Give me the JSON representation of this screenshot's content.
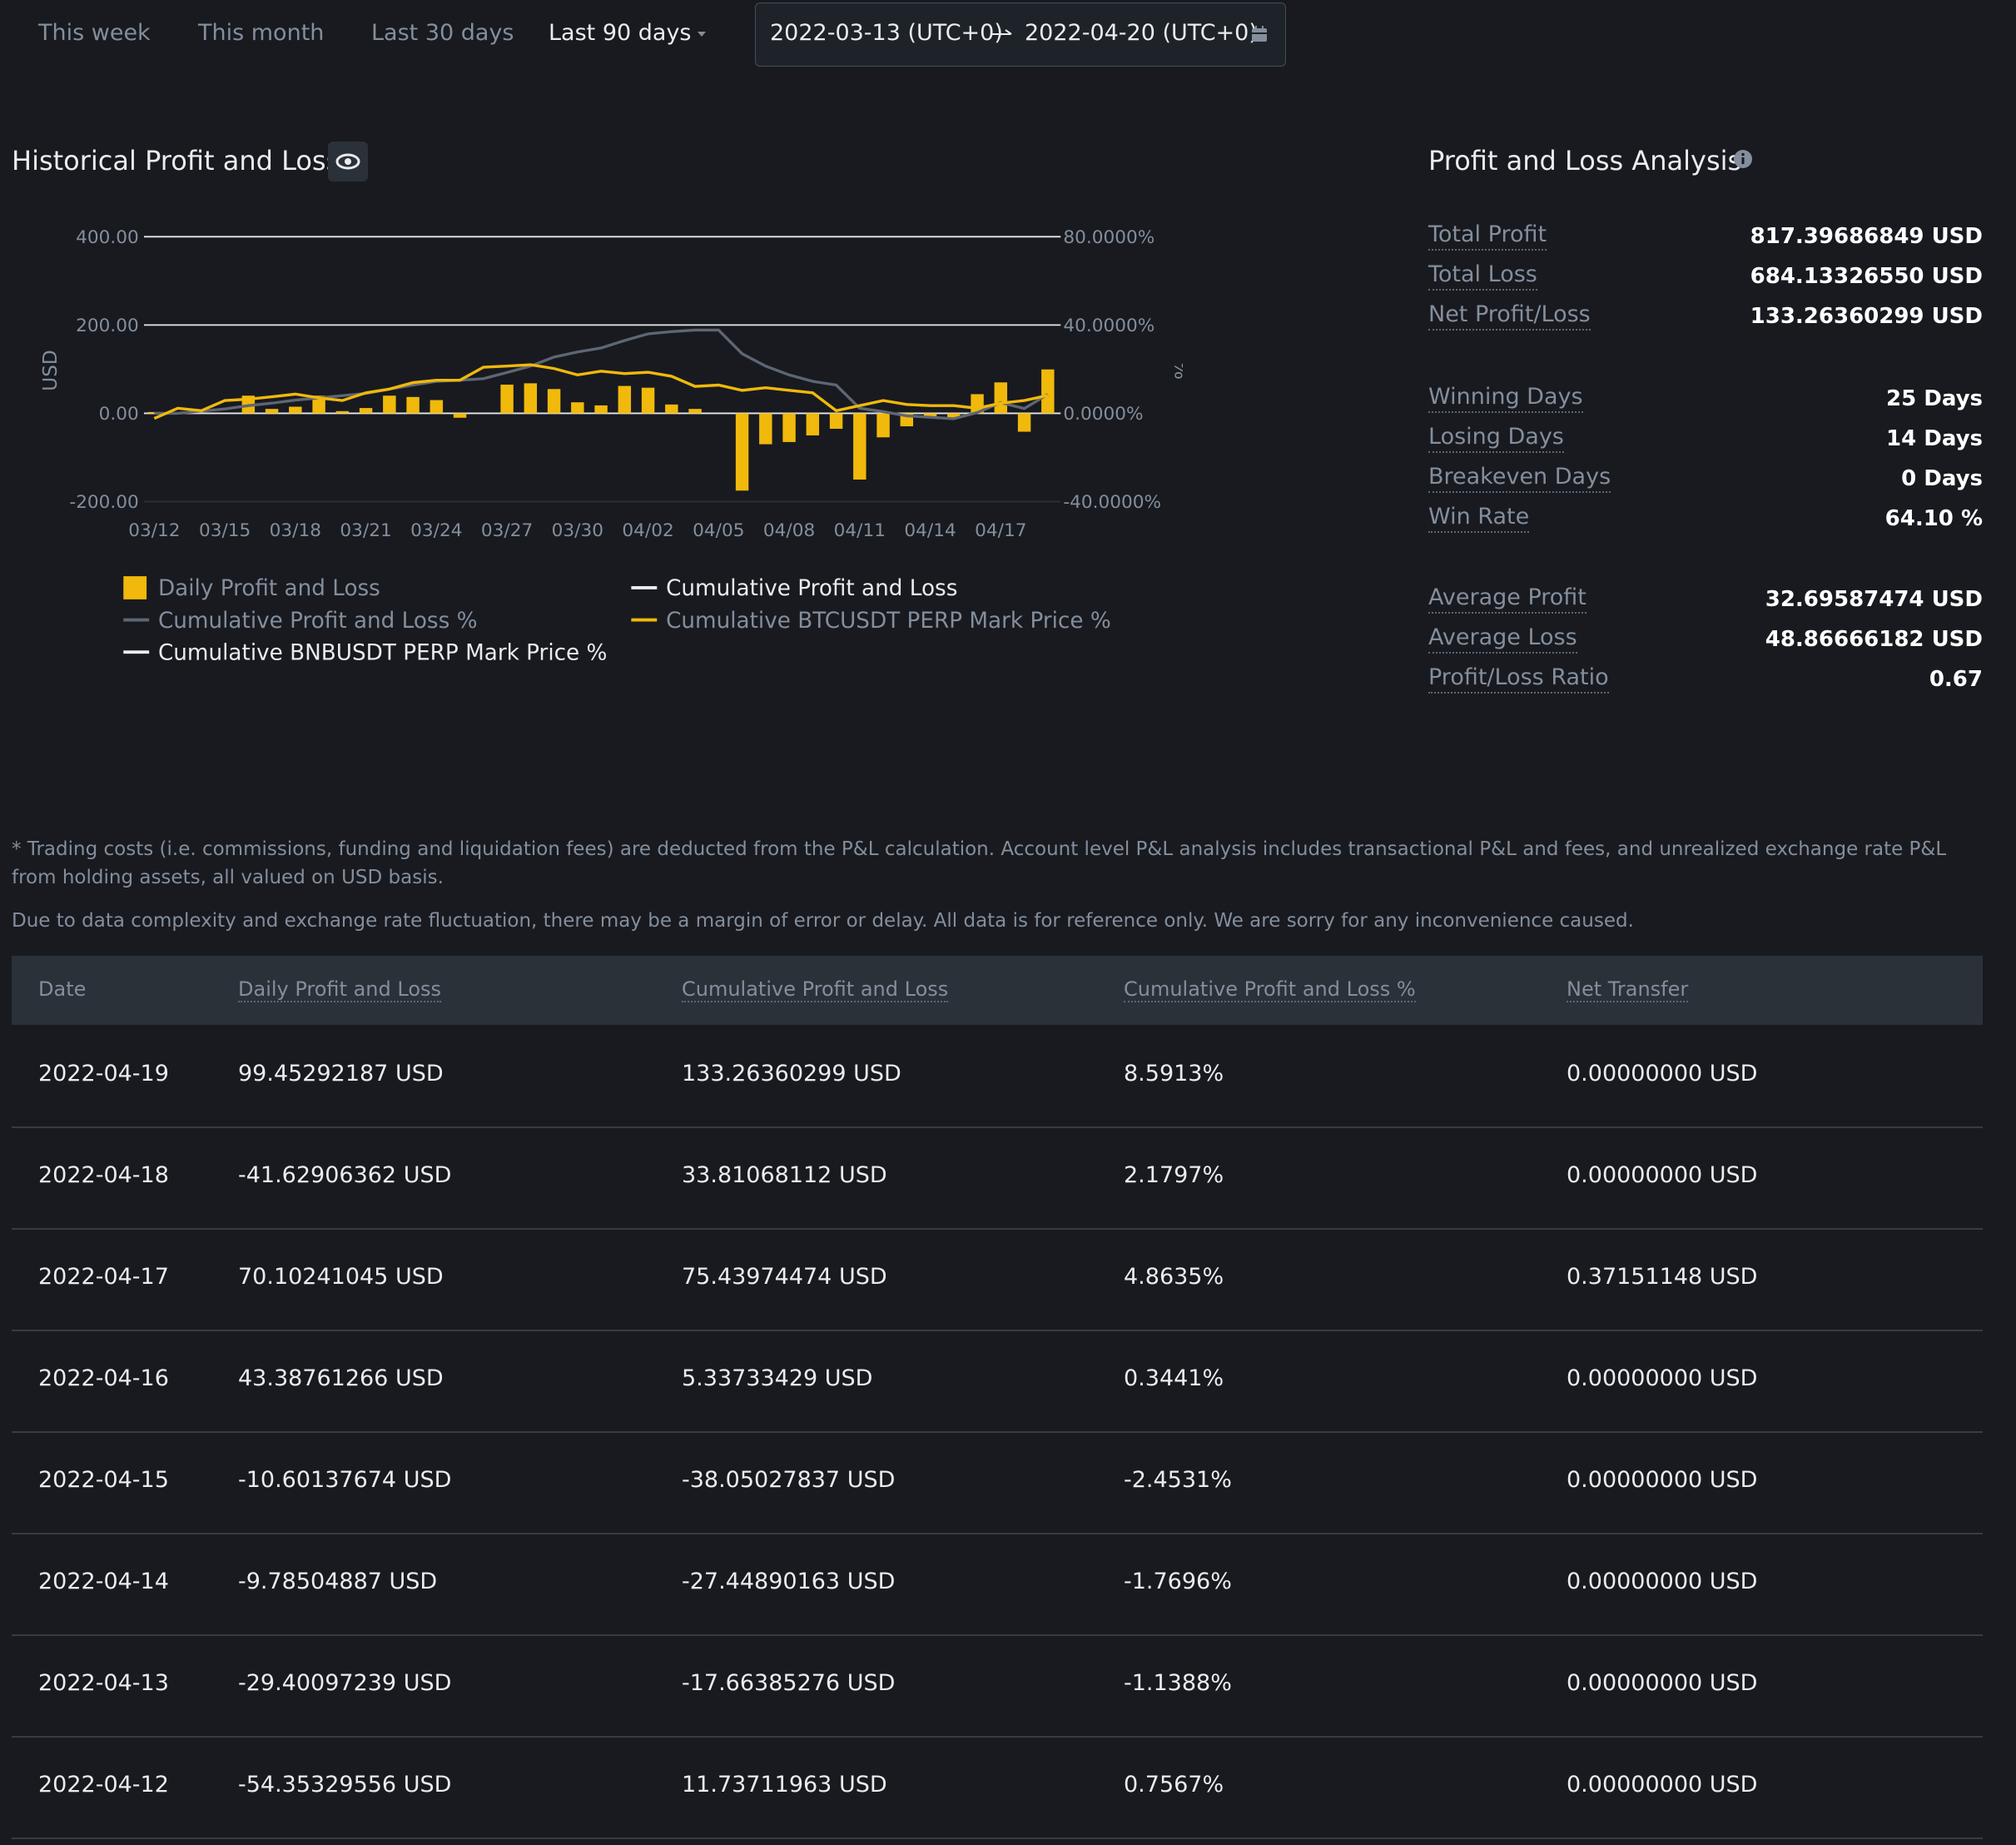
{
  "tabs": [
    "This week",
    "This month",
    "Last 30 days",
    "Last 90 days"
  ],
  "date_range": {
    "start": "2022-03-13 (UTC+0)",
    "end": "2022-04-20 (UTC+0)"
  },
  "chart_title": "Historical Profit and Loss",
  "chart_data": {
    "type": "bar",
    "y_label": "USD",
    "y2_label": "%",
    "categories": [
      "03/12",
      null,
      null,
      "03/15",
      null,
      null,
      "03/18",
      null,
      null,
      "03/21",
      null,
      null,
      "03/24",
      null,
      null,
      "03/27",
      null,
      null,
      "03/30",
      null,
      null,
      "04/02",
      null,
      null,
      "04/05",
      null,
      null,
      "04/08",
      null,
      null,
      "04/11",
      null,
      null,
      "04/14",
      null,
      null,
      "04/17",
      null,
      null
    ],
    "ylim": [
      -200,
      400
    ],
    "yticks": [
      {
        "value": -200,
        "label": "-200.00"
      },
      {
        "value": 0,
        "label": "0.00"
      },
      {
        "value": 200,
        "label": "200.00"
      },
      {
        "value": 400,
        "label": "400.00"
      }
    ],
    "y2lim": [
      -40,
      80
    ],
    "y2ticks": [
      {
        "value": -40,
        "label": "-40.0000%"
      },
      {
        "value": 0,
        "label": "0.0000%"
      },
      {
        "value": 40,
        "label": "40.0000%"
      },
      {
        "value": 80,
        "label": "80.0000%"
      }
    ],
    "grid": true,
    "series": [
      {
        "name": "Daily Profit and Loss",
        "color": "#f0b90b",
        "values": [
          3,
          0,
          0,
          0,
          40,
          10,
          15,
          40,
          5,
          12,
          40,
          37,
          30,
          -10,
          0,
          65,
          68,
          55,
          25,
          18,
          62,
          58,
          20,
          10,
          0,
          -175,
          -70,
          -65,
          -50,
          -35,
          -150,
          -54.35329556,
          -29.40097239,
          -9.78504887,
          -10.60137674,
          43.38761266,
          70.10241045,
          -41.62906362,
          99.45292187
        ]
      },
      {
        "name": "Cumulative Profit and Loss",
        "color": "#eaecef"
      },
      {
        "name": "Cumulative Profit and Loss %",
        "color": "#5e6673",
        "axis": "y2",
        "values": [
          0,
          0,
          1,
          2,
          3.5,
          4.6,
          6,
          7,
          8,
          9,
          11,
          12.8,
          14.5,
          15,
          15.7,
          18.5,
          21.4,
          25.5,
          27.8,
          29.6,
          33,
          36,
          37,
          37.7,
          37.7,
          27,
          21.4,
          17.4,
          14.5,
          12.8,
          2.3,
          0.7567,
          -1.1388,
          -1.7696,
          -2.4531,
          0.3441,
          4.8635,
          2.1797,
          8.5913
        ]
      },
      {
        "name": "Cumulative BTCUSDT PERP Mark Price %",
        "color": "#f0b90b",
        "axis": "y2",
        "values": [
          -2.3,
          2.3,
          1.2,
          5.8,
          6.4,
          7.5,
          8.7,
          7,
          5.8,
          9.3,
          11,
          13.9,
          15,
          15,
          20.9,
          21.4,
          22,
          20.3,
          17.4,
          19.1,
          18,
          18.6,
          16.8,
          12.2,
          12.8,
          10.4,
          11.6,
          10.4,
          9.3,
          1.2,
          3.5,
          5.8,
          4,
          3.5,
          3.5,
          2.3,
          4.6,
          5.8,
          8.1
        ]
      },
      {
        "name": "Cumulative BNBUSDT PERP Mark Price %",
        "color": "#eaecef",
        "axis": "y2"
      }
    ]
  },
  "analysis": {
    "title": "Profit and Loss Analysis",
    "groups": [
      [
        {
          "label": "Total Profit",
          "value": "817.39686849 USD"
        },
        {
          "label": "Total Loss",
          "value": "684.13326550 USD"
        },
        {
          "label": "Net Profit/Loss",
          "value": "133.26360299 USD"
        }
      ],
      [
        {
          "label": "Winning Days",
          "value": "25 Days"
        },
        {
          "label": "Losing Days",
          "value": "14 Days"
        },
        {
          "label": "Breakeven Days",
          "value": "0 Days"
        },
        {
          "label": "Win Rate",
          "value": "64.10 %"
        }
      ],
      [
        {
          "label": "Average Profit",
          "value": "32.69587474 USD"
        },
        {
          "label": "Average Loss",
          "value": "48.86666182 USD"
        },
        {
          "label": "Profit/Loss Ratio",
          "value": "0.67"
        }
      ]
    ]
  },
  "notes": [
    "* Trading costs (i.e. commissions, funding and liquidation fees) are deducted from the P&L calculation. Account level P&L analysis includes transactional P&L and fees, and unrealized exchange rate P&L from holding assets, all valued on USD basis.",
    "Due to data complexity and exchange rate fluctuation, there may be a margin of error or delay. All data is for reference only. We are sorry for any inconvenience caused."
  ],
  "table": {
    "columns": [
      "Date",
      "Daily Profit and Loss",
      "Cumulative Profit and Loss",
      "Cumulative Profit and Loss %",
      "Net Transfer"
    ],
    "rows": [
      [
        "2022-04-19",
        "99.45292187 USD",
        "133.26360299 USD",
        "8.5913%",
        "0.00000000 USD"
      ],
      [
        "2022-04-18",
        "-41.62906362 USD",
        "33.81068112 USD",
        "2.1797%",
        "0.00000000 USD"
      ],
      [
        "2022-04-17",
        "70.10241045 USD",
        "75.43974474 USD",
        "4.8635%",
        "0.37151148 USD"
      ],
      [
        "2022-04-16",
        "43.38761266 USD",
        "5.33733429 USD",
        "0.3441%",
        "0.00000000 USD"
      ],
      [
        "2022-04-15",
        "-10.60137674 USD",
        "-38.05027837 USD",
        "-2.4531%",
        "0.00000000 USD"
      ],
      [
        "2022-04-14",
        "-9.78504887 USD",
        "-27.44890163 USD",
        "-1.7696%",
        "0.00000000 USD"
      ],
      [
        "2022-04-13",
        "-29.40097239 USD",
        "-17.66385276 USD",
        "-1.1388%",
        "0.00000000 USD"
      ],
      [
        "2022-04-12",
        "-54.35329556 USD",
        "11.73711963 USD",
        "0.7567%",
        "0.00000000 USD"
      ]
    ]
  }
}
